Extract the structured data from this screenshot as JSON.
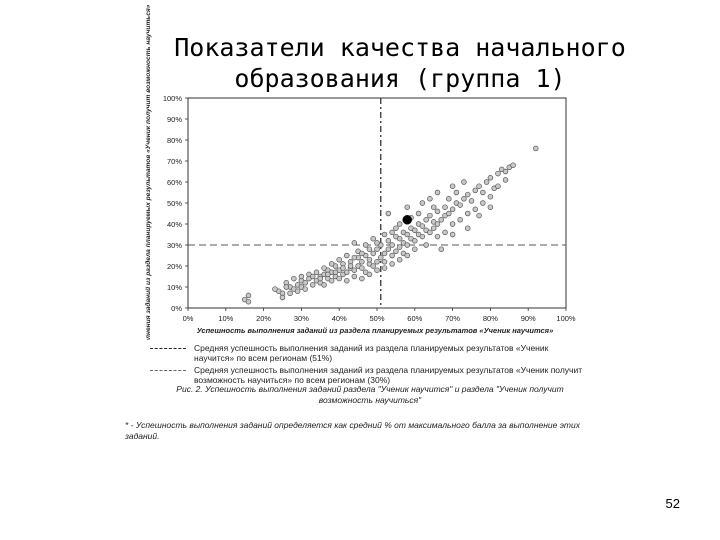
{
  "slide": {
    "title_line1": "Показатели качества начального",
    "title_line2": "образования (группа 1)",
    "page_number": "52"
  },
  "legend": {
    "item1": "Средняя успешность выполнения заданий из раздела планируемых результатов «Ученик научится» по всем регионам (51%)",
    "item2": "Средняя успешность выполнения заданий из раздела планируемых результатов «Ученик получит возможность научиться» по всем регионам (30%)"
  },
  "caption": "Рис. 2. Успешность выполнения заданий раздела \"Ученик научится\" и раздела \"Ученик получит возможность научиться\"",
  "footnote": "* - Успешность выполнения заданий определяется как средний % от максимального балла за выполнение этих заданий.",
  "chart_data": {
    "type": "scatter",
    "xlabel": "Успешность выполнения заданий из раздела планируемых результатов «Ученик научится»",
    "ylabel": "Успешность выполнения заданий из раздела планируемых результатов «Ученик получит возможность научиться»",
    "x_ticks": [
      "0%",
      "10%",
      "20%",
      "30%",
      "40%",
      "50%",
      "60%",
      "70%",
      "80%",
      "90%",
      "100%"
    ],
    "y_ticks": [
      "0%",
      "10%",
      "20%",
      "30%",
      "40%",
      "50%",
      "60%",
      "70%",
      "80%",
      "90%",
      "100%"
    ],
    "xlim": [
      0,
      100
    ],
    "ylim": [
      0,
      100
    ],
    "vline_x": 51,
    "hline_y": 30,
    "highlight": {
      "x": 58,
      "y": 42
    },
    "grid": false,
    "points": [
      [
        16,
        6
      ],
      [
        15,
        4
      ],
      [
        16,
        3
      ],
      [
        24,
        8
      ],
      [
        23,
        9
      ],
      [
        25,
        7
      ],
      [
        27,
        10
      ],
      [
        26,
        12
      ],
      [
        28,
        9
      ],
      [
        29,
        11
      ],
      [
        30,
        13
      ],
      [
        31,
        12
      ],
      [
        30,
        10
      ],
      [
        32,
        14
      ],
      [
        33,
        11
      ],
      [
        34,
        13
      ],
      [
        35,
        15
      ],
      [
        35,
        12
      ],
      [
        36,
        16
      ],
      [
        36,
        11
      ],
      [
        37,
        14
      ],
      [
        37,
        18
      ],
      [
        38,
        13
      ],
      [
        38,
        17
      ],
      [
        39,
        15
      ],
      [
        39,
        20
      ],
      [
        40,
        14
      ],
      [
        40,
        18
      ],
      [
        41,
        16
      ],
      [
        41,
        21
      ],
      [
        42,
        17
      ],
      [
        42,
        13
      ],
      [
        43,
        19
      ],
      [
        43,
        22
      ],
      [
        44,
        18
      ],
      [
        44,
        15
      ],
      [
        45,
        20
      ],
      [
        45,
        24
      ],
      [
        46,
        19
      ],
      [
        46,
        22
      ],
      [
        47,
        17
      ],
      [
        47,
        25
      ],
      [
        48,
        21
      ],
      [
        48,
        23
      ],
      [
        49,
        20
      ],
      [
        49,
        26
      ],
      [
        50,
        22
      ],
      [
        50,
        28
      ],
      [
        50,
        18
      ],
      [
        51,
        24
      ],
      [
        51,
        30
      ],
      [
        52,
        26
      ],
      [
        52,
        22
      ],
      [
        53,
        28
      ],
      [
        53,
        32
      ],
      [
        54,
        25
      ],
      [
        54,
        30
      ],
      [
        55,
        27
      ],
      [
        55,
        34
      ],
      [
        56,
        29
      ],
      [
        56,
        33
      ],
      [
        57,
        31
      ],
      [
        57,
        36
      ],
      [
        58,
        30
      ],
      [
        58,
        35
      ],
      [
        59,
        33
      ],
      [
        59,
        38
      ],
      [
        60,
        32
      ],
      [
        60,
        37
      ],
      [
        61,
        35
      ],
      [
        61,
        40
      ],
      [
        62,
        34
      ],
      [
        62,
        39
      ],
      [
        63,
        37
      ],
      [
        63,
        42
      ],
      [
        64,
        36
      ],
      [
        64,
        44
      ],
      [
        65,
        38
      ],
      [
        65,
        41
      ],
      [
        66,
        40
      ],
      [
        66,
        46
      ],
      [
        67,
        42
      ],
      [
        68,
        44
      ],
      [
        68,
        48
      ],
      [
        69,
        45
      ],
      [
        70,
        47
      ],
      [
        71,
        50
      ],
      [
        72,
        49
      ],
      [
        73,
        52
      ],
      [
        74,
        54
      ],
      [
        75,
        51
      ],
      [
        76,
        56
      ],
      [
        77,
        58
      ],
      [
        78,
        55
      ],
      [
        79,
        60
      ],
      [
        80,
        62
      ],
      [
        81,
        57
      ],
      [
        82,
        64
      ],
      [
        83,
        66
      ],
      [
        84,
        61
      ],
      [
        85,
        67
      ],
      [
        92,
        76
      ],
      [
        58,
        48
      ],
      [
        55,
        38
      ],
      [
        53,
        45
      ],
      [
        49,
        33
      ],
      [
        47,
        30
      ],
      [
        45,
        27
      ],
      [
        44,
        31
      ],
      [
        42,
        25
      ],
      [
        40,
        23
      ],
      [
        38,
        21
      ],
      [
        36,
        19
      ],
      [
        34,
        17
      ],
      [
        32,
        16
      ],
      [
        30,
        15
      ],
      [
        28,
        14
      ],
      [
        26,
        10
      ],
      [
        63,
        30
      ],
      [
        66,
        34
      ],
      [
        68,
        36
      ],
      [
        70,
        40
      ],
      [
        72,
        42
      ],
      [
        74,
        45
      ],
      [
        67,
        28
      ],
      [
        70,
        35
      ],
      [
        60,
        28
      ],
      [
        57,
        26
      ],
      [
        62,
        50
      ],
      [
        64,
        52
      ],
      [
        66,
        55
      ],
      [
        70,
        58
      ],
      [
        73,
        60
      ],
      [
        76,
        47
      ],
      [
        78,
        50
      ],
      [
        80,
        53
      ],
      [
        61,
        45
      ],
      [
        59,
        43
      ],
      [
        56,
        40
      ],
      [
        54,
        36
      ],
      [
        52,
        35
      ],
      [
        50,
        31
      ],
      [
        48,
        28
      ],
      [
        46,
        26
      ],
      [
        44,
        24
      ],
      [
        43,
        20
      ],
      [
        41,
        19
      ],
      [
        39,
        17
      ],
      [
        37,
        16
      ],
      [
        35,
        14
      ],
      [
        33,
        15
      ],
      [
        31,
        9
      ],
      [
        29,
        8
      ],
      [
        27,
        7
      ],
      [
        25,
        5
      ],
      [
        46,
        14
      ],
      [
        48,
        16
      ],
      [
        52,
        19
      ],
      [
        54,
        21
      ],
      [
        56,
        23
      ],
      [
        58,
        25
      ],
      [
        74,
        38
      ],
      [
        77,
        44
      ],
      [
        80,
        48
      ],
      [
        82,
        58
      ],
      [
        84,
        65
      ],
      [
        86,
        68
      ],
      [
        71,
        55
      ],
      [
        69,
        52
      ],
      [
        65,
        48
      ]
    ]
  }
}
